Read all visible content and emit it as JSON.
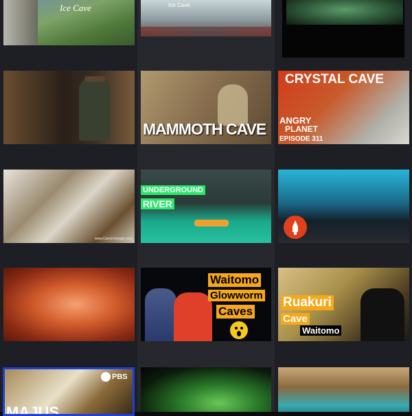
{
  "grid": {
    "thumbnails": [
      {
        "id": "ice-cave-valley",
        "texts": {
          "title": "Ice Cave"
        }
      },
      {
        "id": "ice-cave-interior",
        "texts": {
          "title": "Ice Cave"
        }
      },
      {
        "id": "green-cave",
        "texts": {}
      },
      {
        "id": "ranger-cave",
        "texts": {}
      },
      {
        "id": "mammoth-cave",
        "texts": {
          "title": "MAMMOTH CAVE"
        }
      },
      {
        "id": "crystal-cave",
        "texts": {
          "title": "CRYSTAL CAVE",
          "brand_line1": "ANGRY",
          "brand_line2": "PLANET",
          "episode": "EPISODE 311"
        }
      },
      {
        "id": "crystal-close",
        "texts": {
          "watermark": "www.CanonVoyage.com"
        }
      },
      {
        "id": "underground-river",
        "texts": {
          "line1": "UNDERGROUND",
          "line2": "RIVER"
        }
      },
      {
        "id": "blue-ice-cave",
        "texts": {}
      },
      {
        "id": "antelope-canyon",
        "texts": {}
      },
      {
        "id": "waitomo-glowworm",
        "texts": {
          "line1": "Waitomo",
          "line2": "Glowworm",
          "line3": "Caves"
        }
      },
      {
        "id": "ruakuri-cave",
        "texts": {
          "line1": "Ruakuri",
          "line2": "Cave",
          "line3": "Waitomo"
        }
      },
      {
        "id": "pbs-cave",
        "texts": {
          "brand": "PBS",
          "title": "MAJUS"
        }
      },
      {
        "id": "green-sinkhole",
        "texts": {}
      },
      {
        "id": "coastal-cave",
        "texts": {}
      }
    ]
  },
  "colors": {
    "accent_green": "#2ee66b",
    "accent_orange": "#f6a81a",
    "pbs_blue": "#1f3fd6",
    "angry_red": "#e2401c"
  },
  "icons": [
    "smile-emoji-icon",
    "rocket-logo-icon",
    "pbs-logo-icon"
  ]
}
